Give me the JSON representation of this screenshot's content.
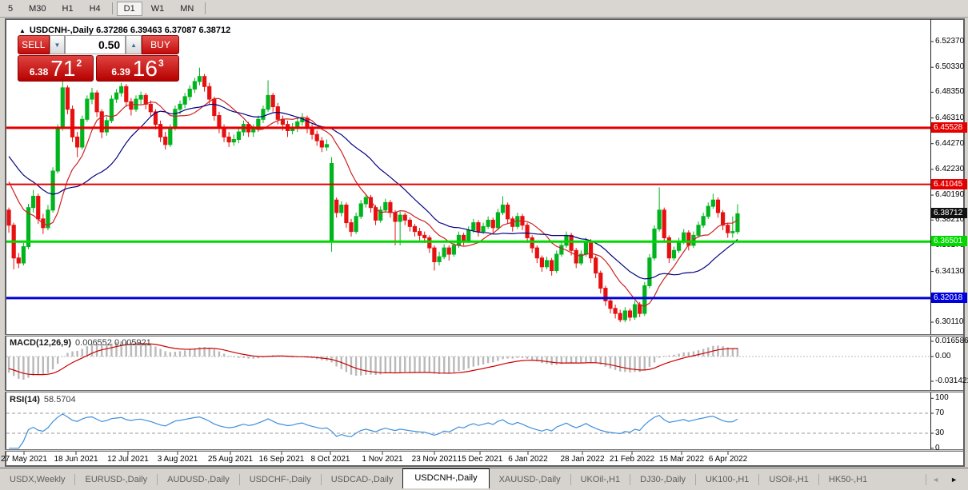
{
  "toolbar": {
    "timeframes": [
      "5",
      "M30",
      "H1",
      "H4",
      "D1",
      "W1",
      "MN"
    ],
    "active": "D1"
  },
  "chart": {
    "title": {
      "arrow": "▲",
      "symbol": "USDCNH-,Daily",
      "ohlc": "6.37286 6.39463 6.37087 6.38712"
    },
    "trade_panel": {
      "sell_label": "SELL",
      "buy_label": "BUY",
      "volume": "0.50",
      "spin_down_glyph": "▼",
      "spin_up_glyph": "▲",
      "sell_price": {
        "small": "6.38",
        "big": "71",
        "sup": "2"
      },
      "buy_price": {
        "small": "6.39",
        "big": "16",
        "sup": "3"
      }
    },
    "price_axis_ticks": [
      "6.52370",
      "6.50330",
      "6.48350",
      "6.46310",
      "6.44270",
      "6.42230",
      "6.40190",
      "6.38210",
      "6.36170",
      "6.34130",
      "6.30110"
    ],
    "current_price": {
      "label": "6.38712",
      "value": 6.38712,
      "bg": "#111111"
    }
  },
  "macd": {
    "label": "MACD(12,26,9)",
    "values": "0.006552 0.005921",
    "ticks": [
      {
        "label": "0.016586",
        "y": 427
      },
      {
        "label": "0.00",
        "y": 446
      },
      {
        "label": "-0.031421",
        "y": 477
      }
    ]
  },
  "rsi": {
    "label": "RSI(14)",
    "value": "58.5704",
    "ticks": [
      100,
      70,
      30,
      0
    ],
    "dashed_levels": [
      70,
      30
    ]
  },
  "date_axis": [
    {
      "label": "27 May 2021",
      "x": 30
    },
    {
      "label": "18 Jun 2021",
      "x": 95
    },
    {
      "label": "12 Jul 2021",
      "x": 160
    },
    {
      "label": "3 Aug 2021",
      "x": 222
    },
    {
      "label": "25 Aug 2021",
      "x": 288
    },
    {
      "label": "16 Sep 2021",
      "x": 352
    },
    {
      "label": "8 Oct 2021",
      "x": 413
    },
    {
      "label": "1 Nov 2021",
      "x": 478
    },
    {
      "label": "23 Nov 2021",
      "x": 543
    },
    {
      "label": "15 Dec 2021",
      "x": 600
    },
    {
      "label": "6 Jan 2022",
      "x": 660
    },
    {
      "label": "28 Jan 2022",
      "x": 728
    },
    {
      "label": "21 Feb 2022",
      "x": 790
    },
    {
      "label": "15 Mar 2022",
      "x": 852
    },
    {
      "label": "6 Apr 2022",
      "x": 910
    }
  ],
  "tabs": {
    "items": [
      "USDX,Weekly",
      "EURUSD-,Daily",
      "AUDUSD-,Daily",
      "USDCHF-,Daily",
      "USDCAD-,Daily",
      "USDCNH-,Daily",
      "XAUUSD-,Daily",
      "UKOil-,H1",
      "DJ30-,Daily",
      "UK100-,H1",
      "USOil-,H1",
      "HK50-,H1"
    ],
    "active_index": 5,
    "scroll_left_glyph": "◄",
    "scroll_right_glyph": "►"
  },
  "colors": {
    "bull": "#00b41e",
    "bear": "#e61010",
    "ma_fast": "#cc2222",
    "ma_slow": "#000080",
    "macd_hist": "#b9b9b9",
    "macd_signal": "#cc0000",
    "rsi_line": "#3e8ede",
    "level_red": "#e40000",
    "level_green": "#00d800",
    "level_blue": "#0000dc"
  },
  "chart_data": {
    "type": "candlestick",
    "symbol": "USDCNH",
    "timeframe": "Daily",
    "ohlc_last_bar": {
      "open": 6.37286,
      "high": 6.39463,
      "low": 6.37087,
      "close": 6.38712
    },
    "y_range": [
      6.2916,
      6.5377
    ],
    "x_labels": [
      "27 May 2021",
      "18 Jun 2021",
      "12 Jul 2021",
      "3 Aug 2021",
      "25 Aug 2021",
      "16 Sep 2021",
      "8 Oct 2021",
      "1 Nov 2021",
      "23 Nov 2021",
      "15 Dec 2021",
      "6 Jan 2022",
      "28 Jan 2022",
      "21 Feb 2022",
      "15 Mar 2022",
      "6 Apr 2022"
    ],
    "levels": [
      {
        "price": 6.45528,
        "label": "6.45528",
        "color": "#e40000",
        "width": 3
      },
      {
        "price": 6.41045,
        "label": "6.41045",
        "color": "#e40000",
        "width": 2
      },
      {
        "price": 6.36501,
        "label": "6.36501",
        "color": "#00d800",
        "width": 3
      },
      {
        "price": 6.32018,
        "label": "6.32018",
        "color": "#0000dc",
        "width": 3
      }
    ],
    "indicators": [
      {
        "name": "MACD",
        "params": [
          12,
          26,
          9
        ],
        "last_values": [
          0.006552,
          0.005921
        ],
        "scale": {
          "max": 0.016586,
          "zero": 0.0,
          "min": -0.031421
        }
      },
      {
        "name": "RSI",
        "params": [
          14
        ],
        "last_value": 58.5704,
        "levels": [
          70,
          30
        ],
        "scale": [
          0,
          100
        ]
      }
    ],
    "ma_seed": [
      6.468,
      6.466,
      6.463,
      6.46,
      6.457,
      6.454,
      6.451,
      6.448,
      6.445,
      6.442,
      6.439,
      6.436,
      6.433,
      6.43,
      6.427,
      6.424,
      6.421,
      6.418,
      6.414,
      6.41,
      6.404,
      6.398
    ],
    "candles": [
      [
        6.39,
        6.392,
        6.372,
        6.378
      ],
      [
        6.378,
        6.38,
        6.343,
        6.352
      ],
      [
        6.352,
        6.356,
        6.344,
        6.348
      ],
      [
        6.348,
        6.364,
        6.346,
        6.361
      ],
      [
        6.361,
        6.395,
        6.359,
        6.392
      ],
      [
        6.392,
        6.406,
        6.388,
        6.401
      ],
      [
        6.401,
        6.403,
        6.379,
        6.383
      ],
      [
        6.383,
        6.387,
        6.371,
        6.376
      ],
      [
        6.376,
        6.394,
        6.374,
        6.39
      ],
      [
        6.39,
        6.424,
        6.388,
        6.421
      ],
      [
        6.421,
        6.458,
        6.419,
        6.455
      ],
      [
        6.455,
        6.493,
        6.453,
        6.487
      ],
      [
        6.487,
        6.489,
        6.466,
        6.47
      ],
      [
        6.47,
        6.473,
        6.444,
        6.448
      ],
      [
        6.448,
        6.452,
        6.432,
        6.44
      ],
      [
        6.44,
        6.465,
        6.438,
        6.462
      ],
      [
        6.462,
        6.481,
        6.46,
        6.478
      ],
      [
        6.478,
        6.487,
        6.474,
        6.483
      ],
      [
        6.483,
        6.485,
        6.464,
        6.468
      ],
      [
        6.468,
        6.47,
        6.447,
        6.452
      ],
      [
        6.452,
        6.464,
        6.449,
        6.461
      ],
      [
        6.461,
        6.481,
        6.459,
        6.478
      ],
      [
        6.478,
        6.486,
        6.475,
        6.483
      ],
      [
        6.483,
        6.491,
        6.48,
        6.488
      ],
      [
        6.488,
        6.49,
        6.472,
        6.476
      ],
      [
        6.476,
        6.479,
        6.465,
        6.47
      ],
      [
        6.47,
        6.481,
        6.468,
        6.478
      ],
      [
        6.478,
        6.484,
        6.474,
        6.481
      ],
      [
        6.481,
        6.483,
        6.47,
        6.474
      ],
      [
        6.474,
        6.477,
        6.464,
        6.468
      ],
      [
        6.468,
        6.47,
        6.454,
        6.458
      ],
      [
        6.458,
        6.461,
        6.444,
        6.448
      ],
      [
        6.448,
        6.452,
        6.438,
        6.442
      ],
      [
        6.442,
        6.458,
        6.44,
        6.455
      ],
      [
        6.455,
        6.473,
        6.453,
        6.47
      ],
      [
        6.47,
        6.477,
        6.466,
        6.474
      ],
      [
        6.474,
        6.483,
        6.471,
        6.48
      ],
      [
        6.48,
        6.489,
        6.477,
        6.486
      ],
      [
        6.486,
        6.495,
        6.483,
        6.492
      ],
      [
        6.492,
        6.503,
        6.489,
        6.496
      ],
      [
        6.496,
        6.498,
        6.484,
        6.488
      ],
      [
        6.488,
        6.491,
        6.474,
        6.478
      ],
      [
        6.478,
        6.48,
        6.461,
        6.465
      ],
      [
        6.465,
        6.468,
        6.451,
        6.455
      ],
      [
        6.455,
        6.458,
        6.444,
        6.448
      ],
      [
        6.448,
        6.452,
        6.44,
        6.444
      ],
      [
        6.444,
        6.45,
        6.441,
        6.446
      ],
      [
        6.446,
        6.455,
        6.443,
        6.452
      ],
      [
        6.452,
        6.461,
        6.449,
        6.458
      ],
      [
        6.458,
        6.46,
        6.448,
        6.452
      ],
      [
        6.452,
        6.458,
        6.448,
        6.455
      ],
      [
        6.455,
        6.465,
        6.452,
        6.462
      ],
      [
        6.462,
        6.473,
        6.459,
        6.47
      ],
      [
        6.47,
        6.493,
        6.468,
        6.481
      ],
      [
        6.481,
        6.483,
        6.468,
        6.472
      ],
      [
        6.472,
        6.475,
        6.458,
        6.462
      ],
      [
        6.462,
        6.465,
        6.453,
        6.458
      ],
      [
        6.458,
        6.461,
        6.448,
        6.453
      ],
      [
        6.453,
        6.459,
        6.45,
        6.455
      ],
      [
        6.455,
        6.463,
        6.452,
        6.46
      ],
      [
        6.46,
        6.467,
        6.457,
        6.463
      ],
      [
        6.463,
        6.465,
        6.451,
        6.455
      ],
      [
        6.455,
        6.458,
        6.446,
        6.45
      ],
      [
        6.45,
        6.453,
        6.441,
        6.445
      ],
      [
        6.445,
        6.448,
        6.436,
        6.44
      ],
      [
        6.44,
        6.446,
        6.437,
        6.442
      ],
      [
        6.365,
        6.432,
        6.357,
        6.427
      ],
      [
        6.398,
        6.4,
        6.384,
        6.388
      ],
      [
        6.388,
        6.397,
        6.385,
        6.394
      ],
      [
        6.394,
        6.396,
        6.376,
        6.38
      ],
      [
        6.38,
        6.383,
        6.369,
        6.373
      ],
      [
        6.373,
        6.388,
        6.371,
        6.385
      ],
      [
        6.385,
        6.398,
        6.383,
        6.395
      ],
      [
        6.395,
        6.403,
        6.392,
        6.4
      ],
      [
        6.4,
        6.402,
        6.388,
        6.392
      ],
      [
        6.392,
        6.394,
        6.378,
        6.382
      ],
      [
        6.382,
        6.393,
        6.38,
        6.39
      ],
      [
        6.39,
        6.399,
        6.388,
        6.396
      ],
      [
        6.396,
        6.398,
        6.384,
        6.388
      ],
      [
        6.388,
        6.39,
        6.362,
        6.381
      ],
      [
        6.381,
        6.389,
        6.362,
        6.386
      ],
      [
        6.386,
        6.388,
        6.378,
        6.382
      ],
      [
        6.382,
        6.384,
        6.373,
        6.377
      ],
      [
        6.377,
        6.379,
        6.369,
        6.373
      ],
      [
        6.373,
        6.376,
        6.366,
        6.37
      ],
      [
        6.37,
        6.373,
        6.364,
        6.368
      ],
      [
        6.368,
        6.37,
        6.356,
        6.36
      ],
      [
        6.36,
        6.362,
        6.342,
        6.349
      ],
      [
        6.349,
        6.357,
        6.346,
        6.353
      ],
      [
        6.353,
        6.363,
        6.351,
        6.36
      ],
      [
        6.36,
        6.362,
        6.35,
        6.355
      ],
      [
        6.355,
        6.365,
        6.353,
        6.362
      ],
      [
        6.362,
        6.373,
        6.36,
        6.37
      ],
      [
        6.37,
        6.372,
        6.362,
        6.366
      ],
      [
        6.366,
        6.377,
        6.364,
        6.374
      ],
      [
        6.374,
        6.383,
        6.372,
        6.38
      ],
      [
        6.38,
        6.382,
        6.369,
        6.373
      ],
      [
        6.373,
        6.38,
        6.371,
        6.377
      ],
      [
        6.377,
        6.385,
        6.375,
        6.382
      ],
      [
        6.382,
        6.384,
        6.372,
        6.376
      ],
      [
        6.376,
        6.391,
        6.374,
        6.388
      ],
      [
        6.388,
        6.401,
        6.386,
        6.394
      ],
      [
        6.394,
        6.396,
        6.379,
        6.383
      ],
      [
        6.383,
        6.385,
        6.373,
        6.377
      ],
      [
        6.377,
        6.388,
        6.375,
        6.385
      ],
      [
        6.385,
        6.387,
        6.374,
        6.378
      ],
      [
        6.378,
        6.38,
        6.364,
        6.368
      ],
      [
        6.368,
        6.37,
        6.356,
        6.36
      ],
      [
        6.36,
        6.362,
        6.348,
        6.352
      ],
      [
        6.352,
        6.354,
        6.341,
        6.345
      ],
      [
        6.345,
        6.353,
        6.343,
        6.35
      ],
      [
        6.35,
        6.352,
        6.338,
        6.342
      ],
      [
        6.342,
        6.358,
        6.34,
        6.355
      ],
      [
        6.355,
        6.365,
        6.353,
        6.362
      ],
      [
        6.362,
        6.373,
        6.36,
        6.37
      ],
      [
        6.37,
        6.372,
        6.354,
        6.358
      ],
      [
        6.358,
        6.36,
        6.344,
        6.348
      ],
      [
        6.348,
        6.358,
        6.346,
        6.355
      ],
      [
        6.355,
        6.368,
        6.353,
        6.365
      ],
      [
        6.365,
        6.367,
        6.348,
        6.352
      ],
      [
        6.352,
        6.354,
        6.336,
        6.34
      ],
      [
        6.34,
        6.342,
        6.324,
        6.328
      ],
      [
        6.328,
        6.33,
        6.314,
        6.318
      ],
      [
        6.318,
        6.32,
        6.308,
        6.312
      ],
      [
        6.312,
        6.315,
        6.304,
        6.308
      ],
      [
        6.308,
        6.311,
        6.301,
        6.303
      ],
      [
        6.303,
        6.313,
        6.301,
        6.31
      ],
      [
        6.31,
        6.312,
        6.302,
        6.305
      ],
      [
        6.305,
        6.318,
        6.303,
        6.315
      ],
      [
        6.315,
        6.317,
        6.305,
        6.308
      ],
      [
        6.308,
        6.333,
        6.306,
        6.33
      ],
      [
        6.33,
        6.355,
        6.328,
        6.352
      ],
      [
        6.352,
        6.378,
        6.35,
        6.375
      ],
      [
        6.375,
        6.408,
        6.373,
        6.39
      ],
      [
        6.39,
        6.392,
        6.364,
        6.368
      ],
      [
        6.368,
        6.37,
        6.348,
        6.352
      ],
      [
        6.352,
        6.361,
        6.35,
        6.358
      ],
      [
        6.358,
        6.368,
        6.356,
        6.365
      ],
      [
        6.365,
        6.375,
        6.363,
        6.372
      ],
      [
        6.372,
        6.374,
        6.358,
        6.362
      ],
      [
        6.362,
        6.373,
        6.36,
        6.37
      ],
      [
        6.37,
        6.381,
        6.368,
        6.378
      ],
      [
        6.378,
        6.388,
        6.376,
        6.385
      ],
      [
        6.385,
        6.396,
        6.383,
        6.393
      ],
      [
        6.393,
        6.403,
        6.391,
        6.398
      ],
      [
        6.398,
        6.4,
        6.384,
        6.388
      ],
      [
        6.388,
        6.39,
        6.374,
        6.378
      ],
      [
        6.378,
        6.38,
        6.368,
        6.372
      ],
      [
        6.372,
        6.385,
        6.368,
        6.373
      ],
      [
        6.3729,
        6.3946,
        6.3709,
        6.3871
      ]
    ]
  }
}
